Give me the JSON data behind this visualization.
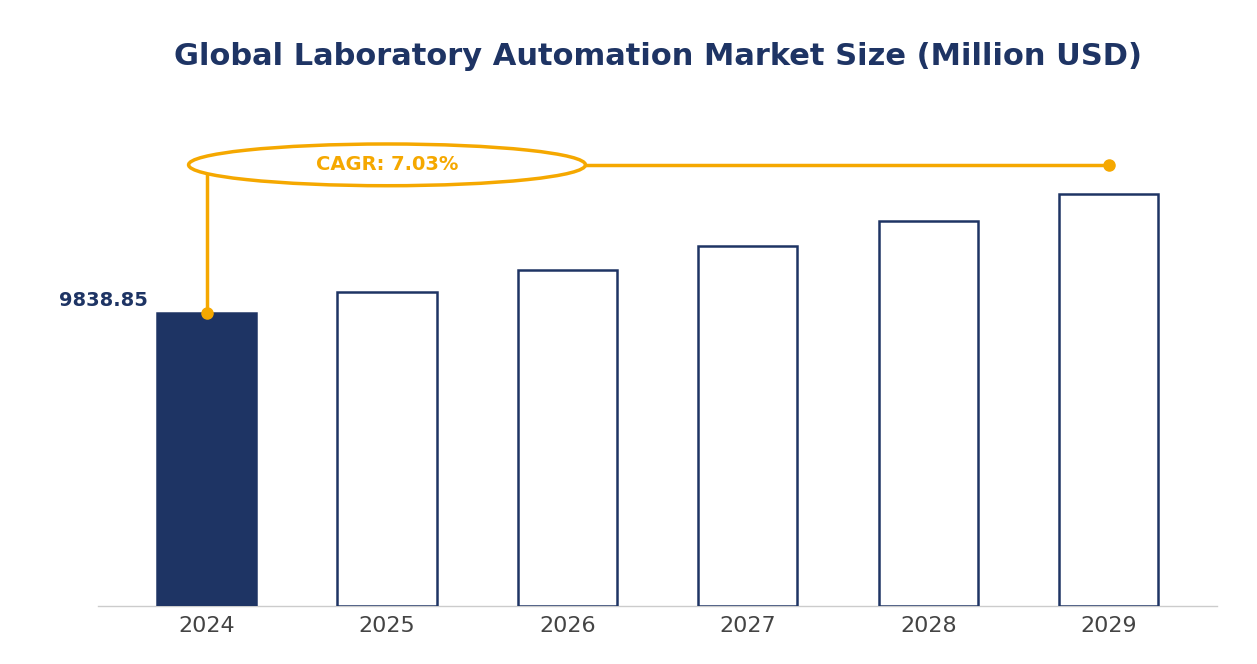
{
  "title": "Global Laboratory Automation Market Size (Million USD)",
  "categories": [
    "2024",
    "2025",
    "2026",
    "2027",
    "2028",
    "2029"
  ],
  "values": [
    9838.85,
    10530.35,
    11270.5,
    12062.7,
    12910.5,
    13818.8
  ],
  "bar_colors": [
    "#1e3464",
    "#ffffff",
    "#ffffff",
    "#ffffff",
    "#ffffff",
    "#ffffff"
  ],
  "bar_edge_colors": [
    "#1e3464",
    "#1e3464",
    "#1e3464",
    "#1e3464",
    "#1e3464",
    "#1e3464"
  ],
  "label_2024": "9838.85",
  "cagr_text": "CAGR: 7.03%",
  "cagr_color": "#f5a800",
  "line_color": "#f5a800",
  "title_color": "#1e3464",
  "label_color": "#1e3464",
  "background_color": "#ffffff",
  "ylim": [
    0,
    17000
  ],
  "title_fontsize": 22,
  "label_fontsize": 14,
  "tick_fontsize": 16,
  "bar_width": 0.55
}
